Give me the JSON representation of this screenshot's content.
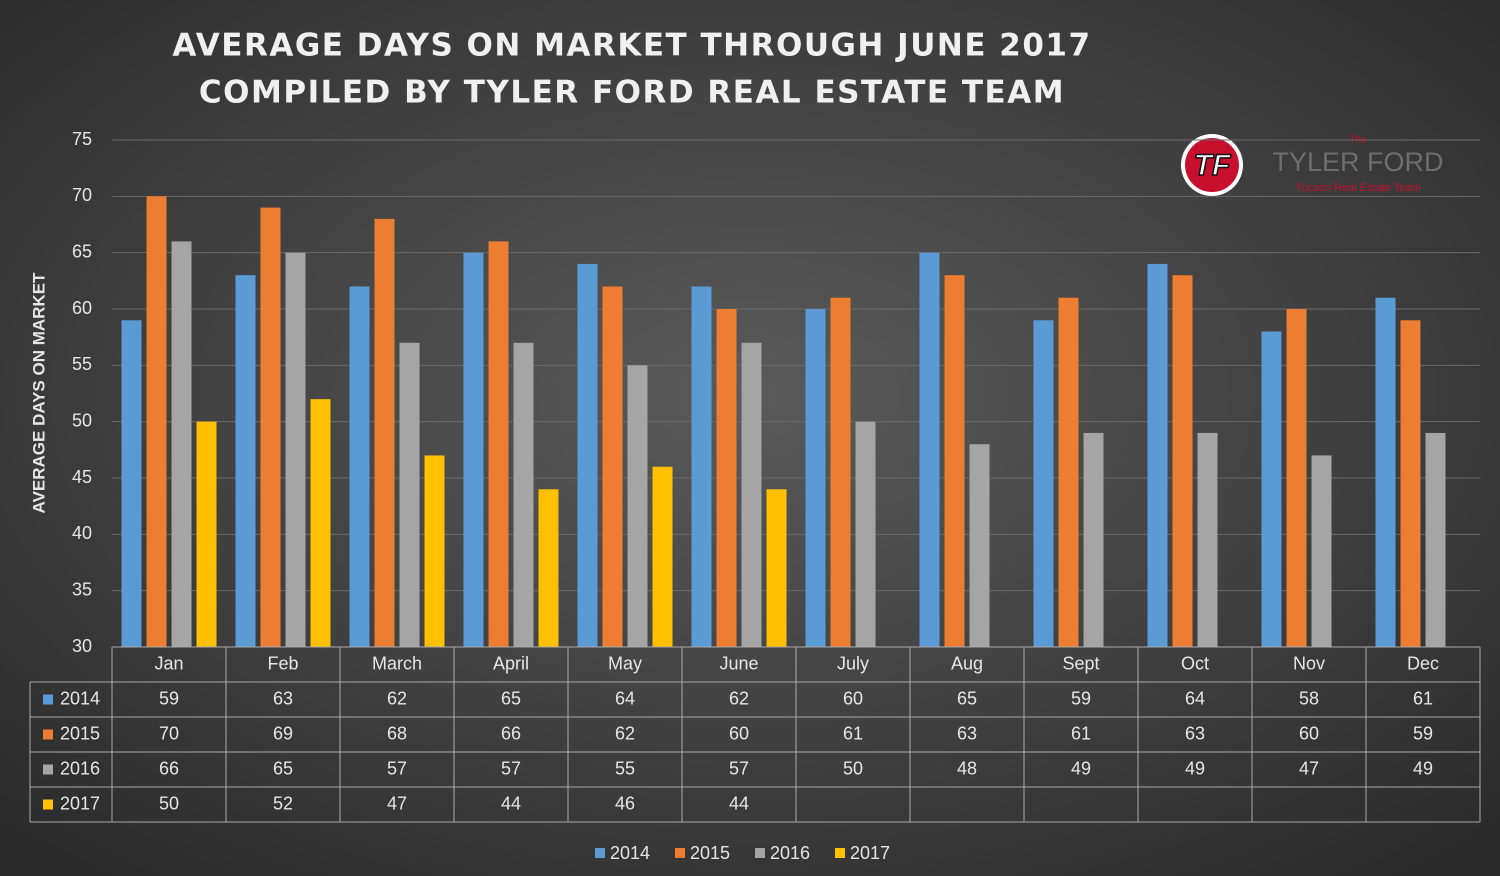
{
  "chart_data": {
    "type": "bar",
    "title": [
      "AVERAGE DAYS ON MARKET THROUGH JUNE 2017",
      "COMPILED BY TYLER FORD REAL ESTATE TEAM"
    ],
    "y_label": "AVERAGE DAYS ON MARKET",
    "categories": [
      "Jan",
      "Feb",
      "March",
      "April",
      "May",
      "June",
      "July",
      "Aug",
      "Sept",
      "Oct",
      "Nov",
      "Dec"
    ],
    "series": [
      {
        "name": "2014",
        "color": "#5b9bd5",
        "values": [
          59,
          63,
          62,
          65,
          64,
          62,
          60,
          65,
          59,
          64,
          58,
          61
        ]
      },
      {
        "name": "2015",
        "color": "#ed7d31",
        "values": [
          70,
          69,
          68,
          66,
          62,
          60,
          61,
          63,
          61,
          63,
          60,
          59
        ]
      },
      {
        "name": "2016",
        "color": "#a5a5a5",
        "values": [
          66,
          65,
          57,
          57,
          55,
          57,
          50,
          48,
          49,
          49,
          47,
          49
        ]
      },
      {
        "name": "2017",
        "color": "#ffc000",
        "values": [
          50,
          52,
          47,
          44,
          46,
          44,
          null,
          null,
          null,
          null,
          null,
          null
        ]
      }
    ],
    "ylim": [
      30,
      75
    ],
    "yticks": [
      30,
      35,
      40,
      45,
      50,
      55,
      60,
      65,
      70,
      75
    ],
    "grid": true,
    "data_table": true,
    "legend": "bottom"
  },
  "logo": {
    "mark": "TF",
    "the": "The",
    "name": "TYLER FORD",
    "tagline": "Tucson Real Estate Team"
  }
}
